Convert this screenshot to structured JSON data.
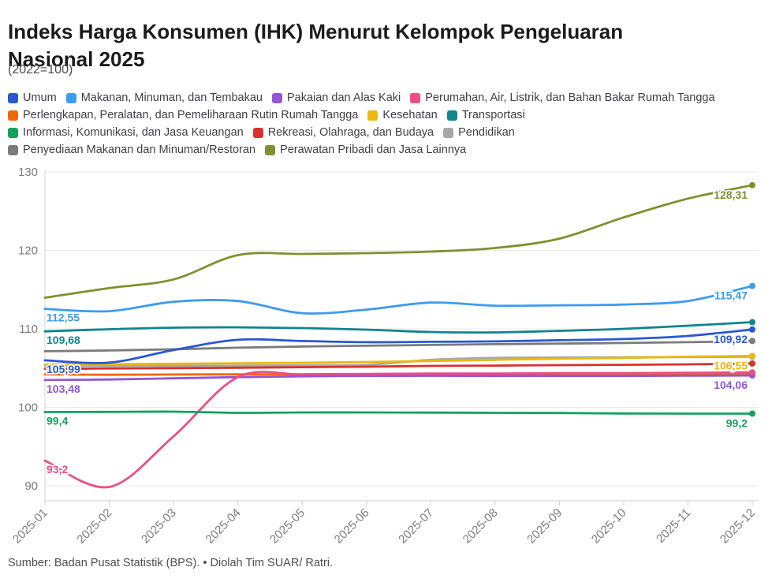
{
  "title_line1": "Indeks Harga Konsumen (IHK) Menurut Kelompok Pengeluaran",
  "title_line2": "Nasional 2025",
  "subtitle": "(2022=100)",
  "source": "Sumber: Badan Pusat Statistik (BPS). • Diolah Tim SUAR/ Ratri.",
  "chart_data": {
    "type": "line",
    "x": [
      "2025-01",
      "2025-02",
      "2025-03",
      "2025-04",
      "2025-05",
      "2025-06",
      "2025-07",
      "2025-08",
      "2025-09",
      "2025-10",
      "2025-11",
      "2025-12"
    ],
    "ylim": [
      88,
      131
    ],
    "yticks": [
      90,
      100,
      110,
      120,
      130
    ],
    "grid": true,
    "legend_position": "top",
    "legend_rows": [
      [
        0,
        1,
        2,
        3
      ],
      [
        4,
        5,
        6
      ],
      [
        7,
        8,
        9
      ],
      [
        10,
        11
      ]
    ],
    "series": [
      {
        "id": "umum",
        "name": "Umum",
        "color": "#2a58d0",
        "values": [
          105.99,
          105.7,
          107.3,
          108.6,
          108.45,
          108.3,
          108.35,
          108.4,
          108.55,
          108.7,
          109.1,
          109.92
        ],
        "start_label": "105,99",
        "end_label": "109,92"
      },
      {
        "id": "makanan",
        "name": "Makanan, Minuman, dan Tembakau",
        "color": "#3d9bf0",
        "values": [
          112.55,
          112.25,
          113.45,
          113.55,
          112.0,
          112.45,
          113.35,
          112.95,
          113.0,
          113.1,
          113.55,
          115.47
        ],
        "start_label": "112,55",
        "end_label": "115,47"
      },
      {
        "id": "pakaian",
        "name": "Pakaian dan Alas Kaki",
        "color": "#9355d4",
        "values": [
          103.48,
          103.55,
          103.7,
          103.85,
          103.95,
          104.0,
          104.02,
          104.0,
          104.0,
          104.0,
          104.03,
          104.06
        ],
        "start_label": "103,48",
        "end_label": "104,06"
      },
      {
        "id": "perumahan",
        "name": "Perumahan, Air, Listrik,  dan Bahan Bakar Rumah Tangga",
        "color": "#ee4d86",
        "values": [
          93.2,
          89.85,
          96.3,
          103.85,
          104.2,
          104.25,
          104.3,
          104.3,
          104.35,
          104.35,
          104.4,
          104.45
        ],
        "start_label": "93,2",
        "end_label": null
      },
      {
        "id": "perlengkapan",
        "name": "Perlengkapan, Peralatan,  dan Pemeliharaan Rutin Rumah Tangga",
        "color": "#f2660a",
        "values": [
          104.2,
          104.15,
          104.18,
          104.2,
          104.2,
          104.22,
          104.25,
          104.22,
          104.2,
          104.2,
          104.2,
          104.22
        ],
        "start_label": null,
        "end_label": null
      },
      {
        "id": "kesehatan",
        "name": "Kesehatan",
        "color": "#ecb80e",
        "values": [
          105.45,
          105.5,
          105.55,
          105.62,
          105.68,
          105.78,
          105.9,
          106.05,
          106.2,
          106.3,
          106.45,
          106.55
        ],
        "start_label": null,
        "end_label": "106,55"
      },
      {
        "id": "transportasi",
        "name": "Transportasi",
        "color": "#10858c",
        "values": [
          109.68,
          109.95,
          110.15,
          110.2,
          110.1,
          109.9,
          109.6,
          109.55,
          109.75,
          110.0,
          110.4,
          110.85
        ],
        "start_label": "109,68",
        "end_label": null
      },
      {
        "id": "informasi",
        "name": "Informasi, Komunikasi,  dan Jasa Keuangan",
        "color": "#13a25e",
        "values": [
          99.4,
          99.42,
          99.45,
          99.3,
          99.35,
          99.35,
          99.33,
          99.3,
          99.28,
          99.22,
          99.2,
          99.2
        ],
        "start_label": "99,4",
        "end_label": "99,2"
      },
      {
        "id": "rekreasi",
        "name": "Rekreasi, Olahraga,  dan Budaya",
        "color": "#d93030",
        "values": [
          104.9,
          104.95,
          105.0,
          105.05,
          105.12,
          105.18,
          105.28,
          105.32,
          105.38,
          105.42,
          105.48,
          105.58
        ],
        "start_label": null,
        "end_label": null
      },
      {
        "id": "pendidikan",
        "name": "Pendidikan",
        "color": "#a7a7a7",
        "values": [
          105.28,
          105.28,
          105.3,
          105.32,
          105.35,
          105.42,
          106.05,
          106.3,
          106.35,
          106.38,
          106.4,
          106.45
        ],
        "start_label": null,
        "end_label": null
      },
      {
        "id": "penyediaan",
        "name": "Penyediaan Makanan dan Minuman/Restoran",
        "color": "#7b7b7b",
        "values": [
          107.15,
          107.25,
          107.4,
          107.6,
          107.75,
          107.85,
          107.95,
          108.05,
          108.12,
          108.2,
          108.3,
          108.45
        ],
        "start_label": null,
        "end_label": null
      },
      {
        "id": "perawatan",
        "name": "Perawatan Pribadi dan Jasa Lainnya",
        "color": "#7d9130",
        "values": [
          113.97,
          115.2,
          116.3,
          119.4,
          119.55,
          119.65,
          119.85,
          120.3,
          121.5,
          124.2,
          126.6,
          128.31
        ],
        "start_label": null,
        "end_label": "128,31"
      }
    ]
  }
}
